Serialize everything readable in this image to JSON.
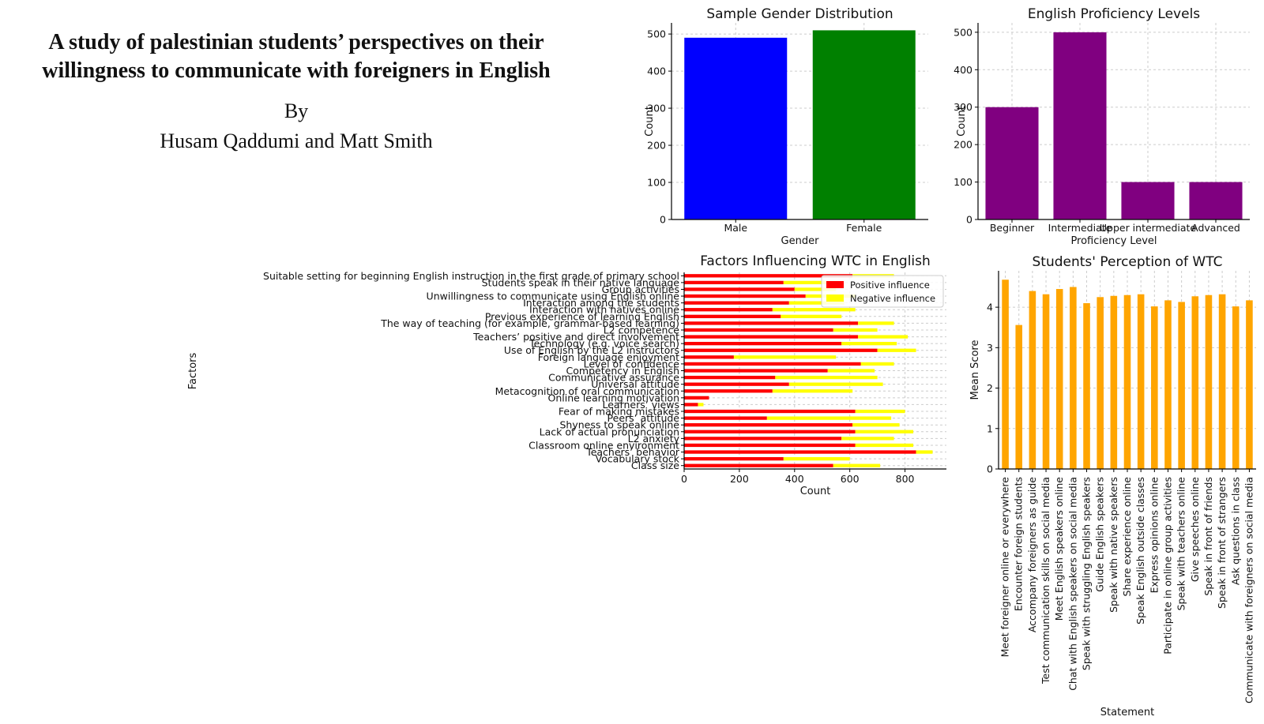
{
  "document": {
    "title": "A study of palestinian students’ perspectives on their willingness to communicate with foreigners in English",
    "by": "By",
    "authors": "Husam Qaddumi and Matt Smith"
  },
  "colors": {
    "male": "#0000ff",
    "female": "#008000",
    "purple": "#800080",
    "positive": "#ff0000",
    "negative": "#ffff00",
    "orange": "#ffa500"
  },
  "chart_data": [
    {
      "type": "bar",
      "title": "Sample Gender Distribution",
      "xlabel": "Gender",
      "ylabel": "Count",
      "categories": [
        "Male",
        "Female"
      ],
      "values": [
        490,
        510
      ],
      "ylim": [
        0,
        530
      ],
      "yticks": [
        0,
        100,
        200,
        300,
        400,
        500
      ],
      "grid": true
    },
    {
      "type": "bar",
      "title": "English Proficiency Levels",
      "xlabel": "Proficiency Level",
      "ylabel": "Count",
      "categories": [
        "Beginner",
        "Intermediate",
        "Upper intermediate",
        "Advanced"
      ],
      "values": [
        300,
        500,
        100,
        100
      ],
      "ylim": [
        0,
        525
      ],
      "yticks": [
        0,
        100,
        200,
        300,
        400,
        500
      ],
      "grid": true
    },
    {
      "type": "bar",
      "orientation": "horizontal",
      "stacked": true,
      "title": "Factors Influencing WTC in English",
      "xlabel": "Count",
      "ylabel": "Factors",
      "legend": "top-right",
      "xlim": [
        0,
        950
      ],
      "xticks": [
        0,
        200,
        400,
        600,
        800
      ],
      "categories": [
        "Suitable setting for beginning English instruction in the first grade of primary school",
        "Students speak in their native language",
        "Group activities",
        "Unwillingness to communicate using English online",
        "Interaction among the students",
        "Interaction with natives online",
        "Previous experience of learning English",
        "The way of teaching (for example, grammar-based learning)",
        "L2 competence",
        "Teachers’ positive and direct involvement",
        "Technology (e.g. voice search)",
        "Use of English by the L2 instructors",
        "Foreign language enjoyment",
        "Level of confidence",
        "Competency in English",
        "Communicative assurance",
        "Universal attitude",
        "Metacognition of oral communication",
        "Online learning motivation",
        "Learners’ views",
        "Fear of making mistakes",
        "Peers’ attitude",
        "Shyness to speak online",
        "Lack of actual pronunciation",
        "L2 anxiety",
        "Classroom online environment",
        "Teachers’ behavior",
        "Vocabulary stock",
        "Class size"
      ],
      "series": [
        {
          "name": "Positive influence",
          "values": [
            610,
            360,
            400,
            440,
            380,
            320,
            350,
            630,
            540,
            630,
            570,
            700,
            180,
            640,
            520,
            330,
            380,
            320,
            90,
            50,
            620,
            300,
            610,
            620,
            570,
            620,
            840,
            360,
            540
          ]
        },
        {
          "name": "Negative influence",
          "values": [
            150,
            200,
            150,
            180,
            200,
            300,
            220,
            130,
            160,
            180,
            200,
            140,
            370,
            120,
            170,
            370,
            340,
            290,
            0,
            20,
            180,
            450,
            170,
            210,
            190,
            210,
            60,
            240,
            170
          ]
        }
      ]
    },
    {
      "type": "bar",
      "title": "Students' Perception of WTC",
      "xlabel": "Statement",
      "ylabel": "Mean Score",
      "ylim": [
        0,
        4.9
      ],
      "yticks": [
        0,
        1,
        2,
        3,
        4
      ],
      "categories": [
        "Meet foreigner online or everywhere",
        "Encounter foreign students",
        "Accompany foreigners as guide",
        "Test communication skills on social media",
        "Meet English speakers online",
        "Chat with English speakers on social media",
        "Speak with struggling English speakers",
        "Guide English speakers",
        "Speak with native speakers",
        "Share experience online",
        "Speak English outside classes",
        "Express opinions online",
        "Participate in online group activities",
        "Speak with teachers online",
        "Give speeches online",
        "Speak in front of friends",
        "Speak in front of strangers",
        "Ask questions in class",
        "Communicate with foreigners on social media"
      ],
      "values": [
        4.68,
        3.56,
        4.4,
        4.32,
        4.45,
        4.5,
        4.1,
        4.25,
        4.28,
        4.3,
        4.32,
        4.02,
        4.17,
        4.13,
        4.27,
        4.3,
        4.32,
        4.02,
        4.17
      ]
    }
  ]
}
